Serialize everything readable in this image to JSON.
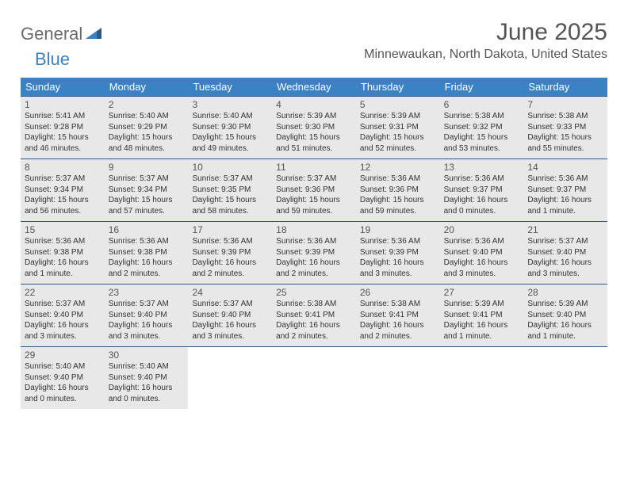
{
  "logo": {
    "word1": "General",
    "word2": "Blue"
  },
  "title": "June 2025",
  "location": "Minnewaukan, North Dakota, United States",
  "colors": {
    "header_bg": "#3b82c4",
    "header_text": "#ffffff",
    "cell_bg": "#e8e8e8",
    "border": "#2a5a8a",
    "text": "#333333",
    "muted": "#555555"
  },
  "day_names": [
    "Sunday",
    "Monday",
    "Tuesday",
    "Wednesday",
    "Thursday",
    "Friday",
    "Saturday"
  ],
  "weeks": [
    [
      {
        "num": "1",
        "sunrise": "Sunrise: 5:41 AM",
        "sunset": "Sunset: 9:28 PM",
        "daylight1": "Daylight: 15 hours",
        "daylight2": "and 46 minutes."
      },
      {
        "num": "2",
        "sunrise": "Sunrise: 5:40 AM",
        "sunset": "Sunset: 9:29 PM",
        "daylight1": "Daylight: 15 hours",
        "daylight2": "and 48 minutes."
      },
      {
        "num": "3",
        "sunrise": "Sunrise: 5:40 AM",
        "sunset": "Sunset: 9:30 PM",
        "daylight1": "Daylight: 15 hours",
        "daylight2": "and 49 minutes."
      },
      {
        "num": "4",
        "sunrise": "Sunrise: 5:39 AM",
        "sunset": "Sunset: 9:30 PM",
        "daylight1": "Daylight: 15 hours",
        "daylight2": "and 51 minutes."
      },
      {
        "num": "5",
        "sunrise": "Sunrise: 5:39 AM",
        "sunset": "Sunset: 9:31 PM",
        "daylight1": "Daylight: 15 hours",
        "daylight2": "and 52 minutes."
      },
      {
        "num": "6",
        "sunrise": "Sunrise: 5:38 AM",
        "sunset": "Sunset: 9:32 PM",
        "daylight1": "Daylight: 15 hours",
        "daylight2": "and 53 minutes."
      },
      {
        "num": "7",
        "sunrise": "Sunrise: 5:38 AM",
        "sunset": "Sunset: 9:33 PM",
        "daylight1": "Daylight: 15 hours",
        "daylight2": "and 55 minutes."
      }
    ],
    [
      {
        "num": "8",
        "sunrise": "Sunrise: 5:37 AM",
        "sunset": "Sunset: 9:34 PM",
        "daylight1": "Daylight: 15 hours",
        "daylight2": "and 56 minutes."
      },
      {
        "num": "9",
        "sunrise": "Sunrise: 5:37 AM",
        "sunset": "Sunset: 9:34 PM",
        "daylight1": "Daylight: 15 hours",
        "daylight2": "and 57 minutes."
      },
      {
        "num": "10",
        "sunrise": "Sunrise: 5:37 AM",
        "sunset": "Sunset: 9:35 PM",
        "daylight1": "Daylight: 15 hours",
        "daylight2": "and 58 minutes."
      },
      {
        "num": "11",
        "sunrise": "Sunrise: 5:37 AM",
        "sunset": "Sunset: 9:36 PM",
        "daylight1": "Daylight: 15 hours",
        "daylight2": "and 59 minutes."
      },
      {
        "num": "12",
        "sunrise": "Sunrise: 5:36 AM",
        "sunset": "Sunset: 9:36 PM",
        "daylight1": "Daylight: 15 hours",
        "daylight2": "and 59 minutes."
      },
      {
        "num": "13",
        "sunrise": "Sunrise: 5:36 AM",
        "sunset": "Sunset: 9:37 PM",
        "daylight1": "Daylight: 16 hours",
        "daylight2": "and 0 minutes."
      },
      {
        "num": "14",
        "sunrise": "Sunrise: 5:36 AM",
        "sunset": "Sunset: 9:37 PM",
        "daylight1": "Daylight: 16 hours",
        "daylight2": "and 1 minute."
      }
    ],
    [
      {
        "num": "15",
        "sunrise": "Sunrise: 5:36 AM",
        "sunset": "Sunset: 9:38 PM",
        "daylight1": "Daylight: 16 hours",
        "daylight2": "and 1 minute."
      },
      {
        "num": "16",
        "sunrise": "Sunrise: 5:36 AM",
        "sunset": "Sunset: 9:38 PM",
        "daylight1": "Daylight: 16 hours",
        "daylight2": "and 2 minutes."
      },
      {
        "num": "17",
        "sunrise": "Sunrise: 5:36 AM",
        "sunset": "Sunset: 9:39 PM",
        "daylight1": "Daylight: 16 hours",
        "daylight2": "and 2 minutes."
      },
      {
        "num": "18",
        "sunrise": "Sunrise: 5:36 AM",
        "sunset": "Sunset: 9:39 PM",
        "daylight1": "Daylight: 16 hours",
        "daylight2": "and 2 minutes."
      },
      {
        "num": "19",
        "sunrise": "Sunrise: 5:36 AM",
        "sunset": "Sunset: 9:39 PM",
        "daylight1": "Daylight: 16 hours",
        "daylight2": "and 3 minutes."
      },
      {
        "num": "20",
        "sunrise": "Sunrise: 5:36 AM",
        "sunset": "Sunset: 9:40 PM",
        "daylight1": "Daylight: 16 hours",
        "daylight2": "and 3 minutes."
      },
      {
        "num": "21",
        "sunrise": "Sunrise: 5:37 AM",
        "sunset": "Sunset: 9:40 PM",
        "daylight1": "Daylight: 16 hours",
        "daylight2": "and 3 minutes."
      }
    ],
    [
      {
        "num": "22",
        "sunrise": "Sunrise: 5:37 AM",
        "sunset": "Sunset: 9:40 PM",
        "daylight1": "Daylight: 16 hours",
        "daylight2": "and 3 minutes."
      },
      {
        "num": "23",
        "sunrise": "Sunrise: 5:37 AM",
        "sunset": "Sunset: 9:40 PM",
        "daylight1": "Daylight: 16 hours",
        "daylight2": "and 3 minutes."
      },
      {
        "num": "24",
        "sunrise": "Sunrise: 5:37 AM",
        "sunset": "Sunset: 9:40 PM",
        "daylight1": "Daylight: 16 hours",
        "daylight2": "and 3 minutes."
      },
      {
        "num": "25",
        "sunrise": "Sunrise: 5:38 AM",
        "sunset": "Sunset: 9:41 PM",
        "daylight1": "Daylight: 16 hours",
        "daylight2": "and 2 minutes."
      },
      {
        "num": "26",
        "sunrise": "Sunrise: 5:38 AM",
        "sunset": "Sunset: 9:41 PM",
        "daylight1": "Daylight: 16 hours",
        "daylight2": "and 2 minutes."
      },
      {
        "num": "27",
        "sunrise": "Sunrise: 5:39 AM",
        "sunset": "Sunset: 9:41 PM",
        "daylight1": "Daylight: 16 hours",
        "daylight2": "and 1 minute."
      },
      {
        "num": "28",
        "sunrise": "Sunrise: 5:39 AM",
        "sunset": "Sunset: 9:40 PM",
        "daylight1": "Daylight: 16 hours",
        "daylight2": "and 1 minute."
      }
    ],
    [
      {
        "num": "29",
        "sunrise": "Sunrise: 5:40 AM",
        "sunset": "Sunset: 9:40 PM",
        "daylight1": "Daylight: 16 hours",
        "daylight2": "and 0 minutes."
      },
      {
        "num": "30",
        "sunrise": "Sunrise: 5:40 AM",
        "sunset": "Sunset: 9:40 PM",
        "daylight1": "Daylight: 16 hours",
        "daylight2": "and 0 minutes."
      },
      null,
      null,
      null,
      null,
      null
    ]
  ]
}
